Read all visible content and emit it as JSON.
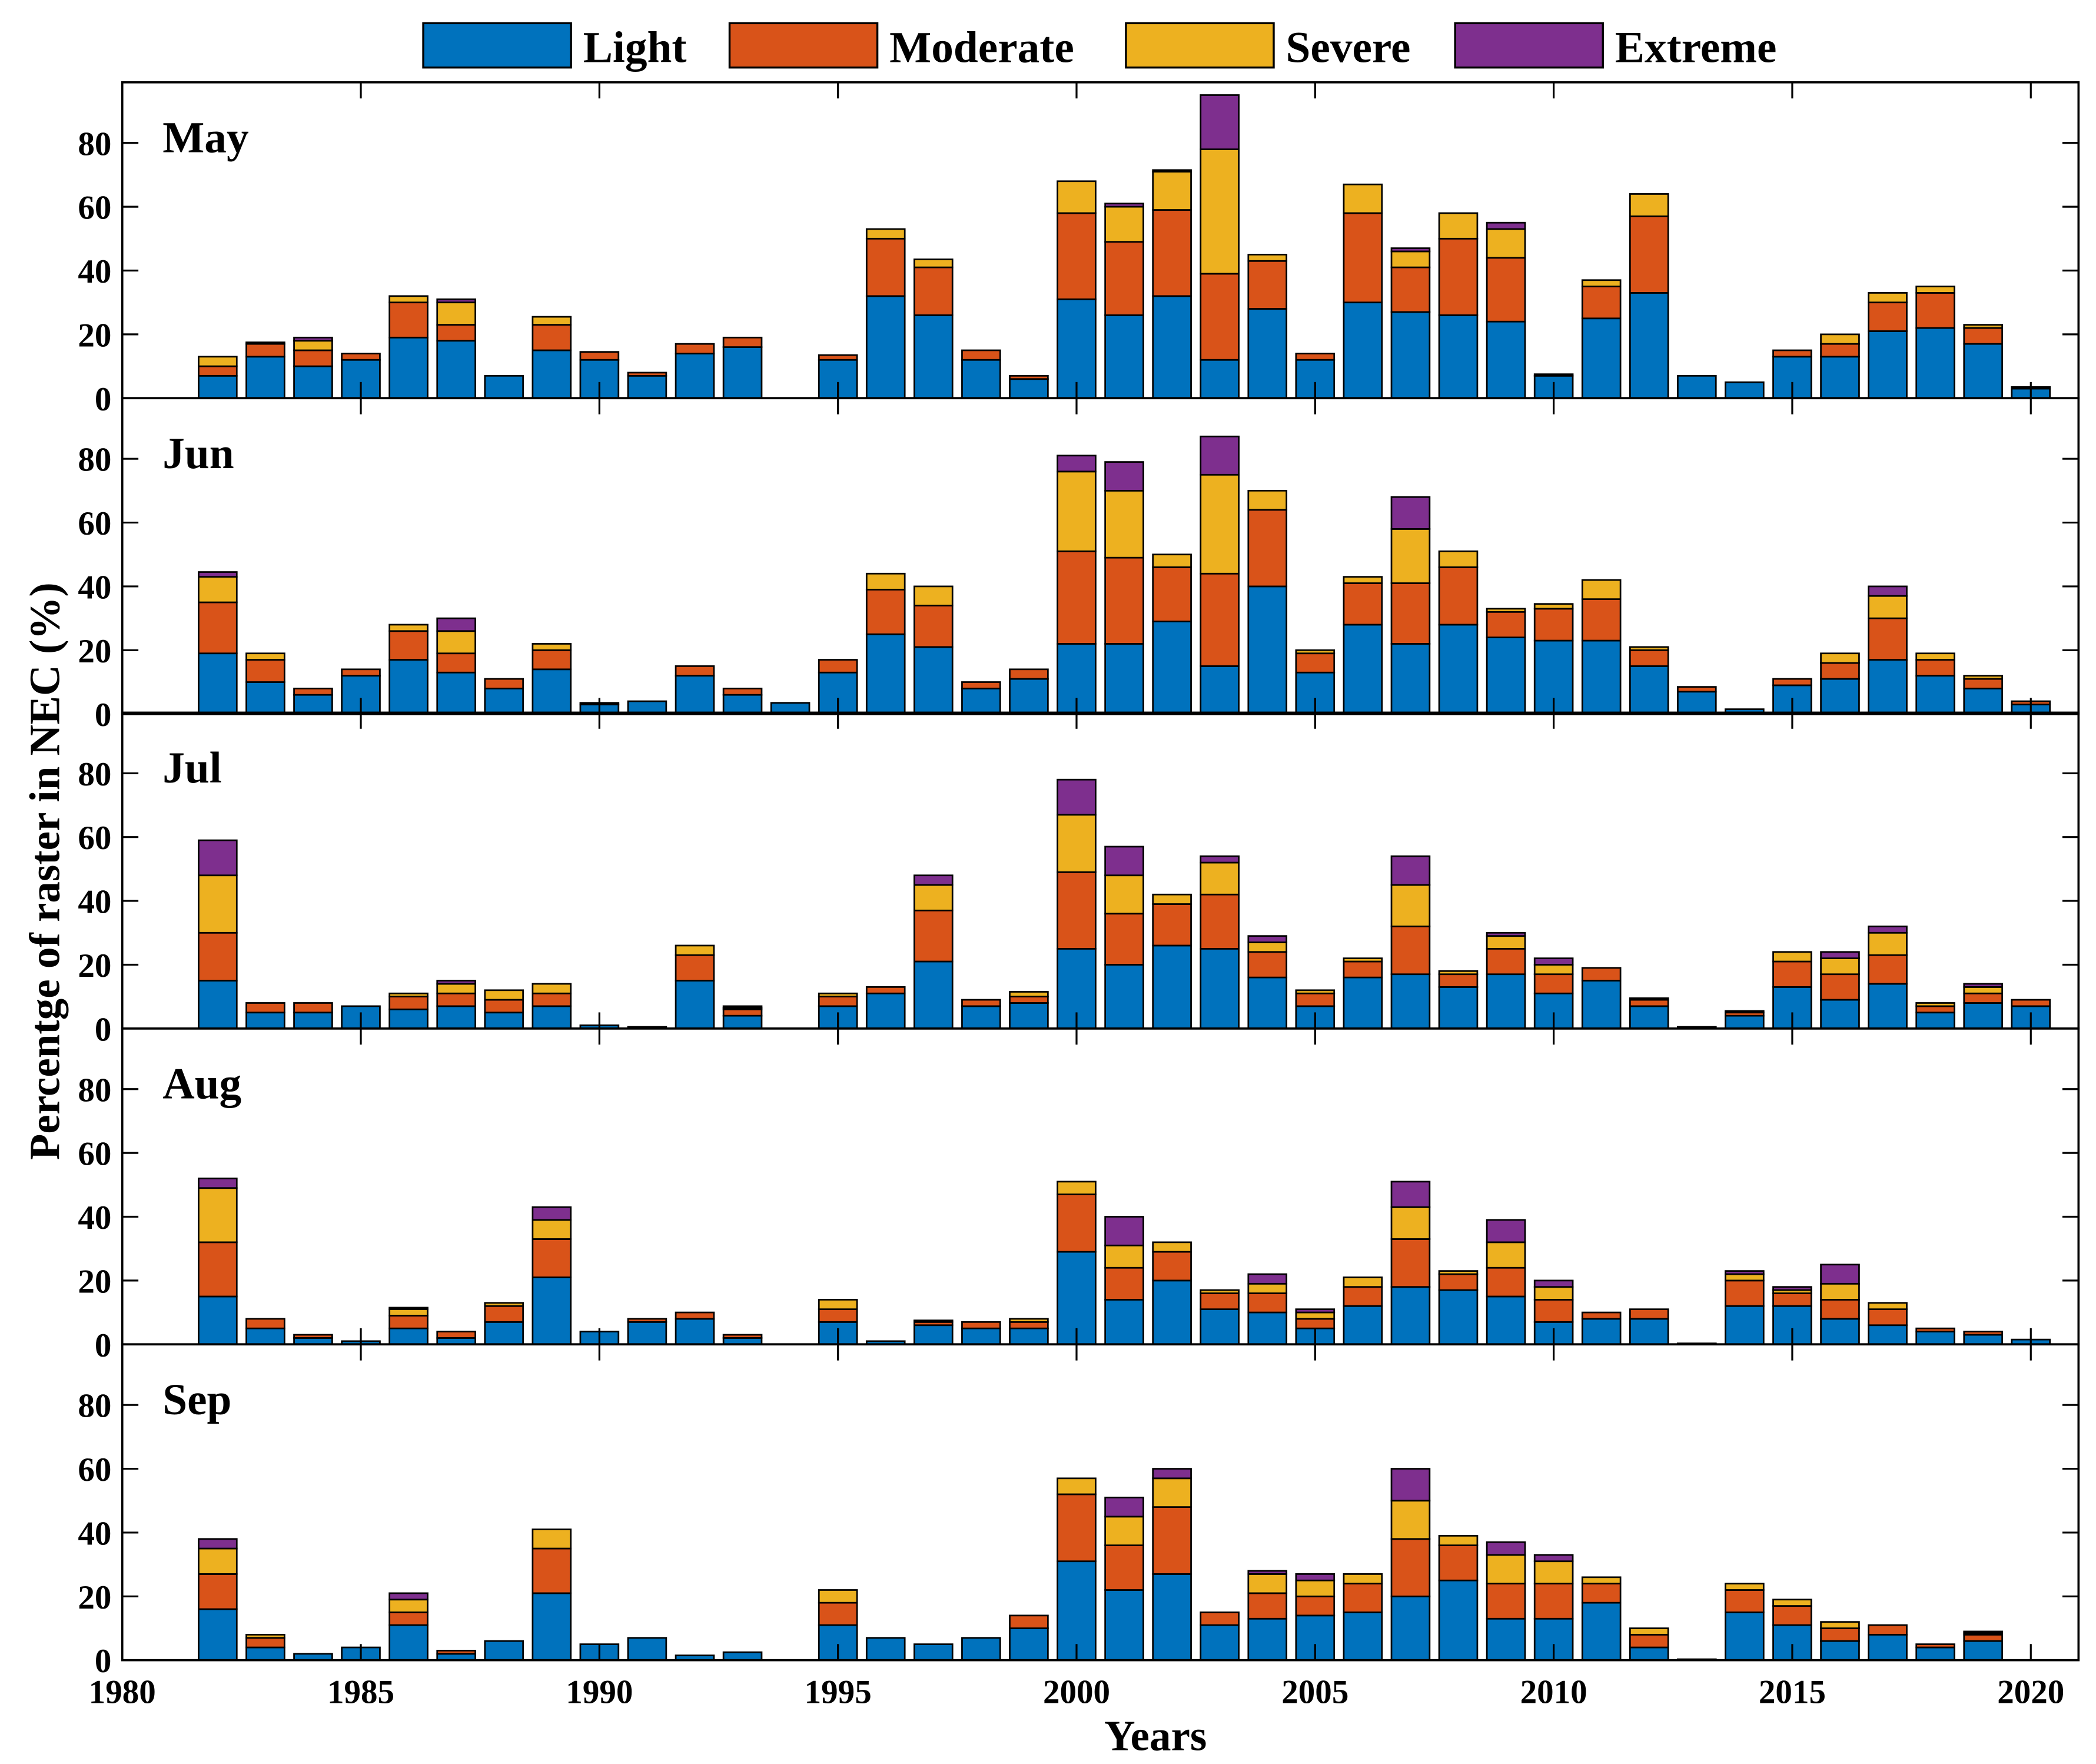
{
  "chart_data": {
    "type": "bar",
    "stacked": true,
    "xlabel": "Years",
    "ylabel": "Percentge of raster in NEC (%)",
    "xlim": [
      1980,
      2021
    ],
    "ylim": [
      0,
      99
    ],
    "xticks": [
      1980,
      1985,
      1990,
      1995,
      2000,
      2005,
      2010,
      2015,
      2020
    ],
    "yticks": [
      0,
      20,
      40,
      60,
      80
    ],
    "legend": {
      "placement": "top-center",
      "entries": [
        "Light",
        "Moderate",
        "Severe",
        "Extreme"
      ]
    },
    "colors": {
      "Light": "#0072BD",
      "Moderate": "#D95319",
      "Severe": "#EDB120",
      "Extreme": "#7E2F8E"
    },
    "x": [
      1982,
      1983,
      1984,
      1985,
      1986,
      1987,
      1988,
      1989,
      1990,
      1991,
      1992,
      1993,
      1994,
      1995,
      1996,
      1997,
      1998,
      1999,
      2000,
      2001,
      2002,
      2003,
      2004,
      2005,
      2006,
      2007,
      2008,
      2009,
      2010,
      2011,
      2012,
      2013,
      2014,
      2015,
      2016,
      2017,
      2018,
      2019,
      2020
    ],
    "panels": [
      {
        "month": "May",
        "series": [
          {
            "name": "Light",
            "values": [
              7,
              13,
              10,
              12,
              19,
              18,
              7,
              15,
              12,
              7,
              14,
              16,
              0,
              12,
              32,
              26,
              12,
              6,
              31,
              26,
              32,
              12,
              28,
              12,
              30,
              27,
              26,
              24,
              7,
              25,
              33,
              7,
              5,
              13,
              13,
              21,
              22,
              17,
              3
            ]
          },
          {
            "name": "Moderate",
            "values": [
              3,
              4,
              5,
              2,
              11,
              5,
              0,
              8,
              2.5,
              1,
              3,
              3,
              0,
              1.5,
              18,
              15,
              3,
              1,
              27,
              23,
              27,
              27,
              15,
              2,
              28,
              14,
              24,
              20,
              0.5,
              10,
              24,
              0,
              0,
              2,
              4,
              9,
              11,
              5,
              0.5
            ]
          },
          {
            "name": "Severe",
            "values": [
              3,
              0.5,
              3,
              0,
              2,
              7,
              0,
              2.5,
              0,
              0,
              0,
              0,
              0,
              0,
              3,
              2.5,
              0,
              0,
              10,
              11,
              12,
              39,
              2,
              0,
              9,
              5,
              8,
              9,
              0,
              2,
              7,
              0,
              0,
              0,
              3,
              3,
              2,
              1,
              0
            ]
          },
          {
            "name": "Extreme",
            "values": [
              0,
              0,
              1,
              0,
              0,
              1,
              0,
              0,
              0,
              0,
              0,
              0,
              0,
              0,
              0,
              0,
              0,
              0,
              0,
              1,
              0.5,
              17,
              0,
              0,
              0,
              1,
              0,
              2,
              0,
              0,
              0,
              0,
              0,
              0,
              0,
              0,
              0,
              0,
              0
            ]
          }
        ]
      },
      {
        "month": "Jun",
        "series": [
          {
            "name": "Light",
            "values": [
              19,
              10,
              6,
              12,
              17,
              13,
              8,
              14,
              3,
              4,
              12,
              6,
              3.5,
              13,
              25,
              21,
              8,
              11,
              22,
              22,
              29,
              15,
              40,
              13,
              28,
              22,
              28,
              24,
              23,
              23,
              15,
              7,
              1.5,
              9,
              11,
              17,
              12,
              8,
              3
            ]
          },
          {
            "name": "Moderate",
            "values": [
              16,
              7,
              2,
              2,
              9,
              6,
              3,
              6,
              0.5,
              0,
              3,
              2,
              0,
              4,
              14,
              13,
              2,
              3,
              29,
              27,
              17,
              29,
              24,
              6,
              13,
              19,
              18,
              8,
              10,
              13,
              5,
              1.5,
              0,
              2,
              5,
              13,
              5,
              3,
              1
            ]
          },
          {
            "name": "Severe",
            "values": [
              8,
              2,
              0,
              0,
              2,
              7,
              0,
              2,
              0,
              0,
              0,
              0,
              0,
              0,
              5,
              6,
              0,
              0,
              25,
              21,
              4,
              31,
              6,
              1,
              2,
              17,
              5,
              1,
              1.5,
              6,
              1,
              0,
              0,
              0,
              3,
              7,
              2,
              1,
              0
            ]
          },
          {
            "name": "Extreme",
            "values": [
              1.5,
              0,
              0,
              0,
              0,
              4,
              0,
              0,
              0,
              0,
              0,
              0,
              0,
              0,
              0,
              0,
              0,
              0,
              5,
              9,
              0,
              12,
              0,
              0,
              0,
              10,
              0,
              0,
              0,
              0,
              0,
              0,
              0,
              0,
              0,
              3,
              0,
              0,
              0
            ]
          }
        ]
      },
      {
        "month": "Jul",
        "series": [
          {
            "name": "Light",
            "values": [
              15,
              5,
              5,
              7,
              6,
              7,
              5,
              7,
              1,
              0.5,
              15,
              4,
              0,
              7,
              11,
              21,
              7,
              8,
              25,
              20,
              26,
              25,
              16,
              7,
              16,
              17,
              13,
              17,
              11,
              15,
              7,
              0.5,
              4,
              13,
              9,
              14,
              5,
              8,
              7
            ]
          },
          {
            "name": "Moderate",
            "values": [
              15,
              3,
              3,
              0,
              4,
              4,
              4,
              4,
              0,
              0,
              8,
              2,
              0,
              3,
              2,
              16,
              2,
              2,
              24,
              16,
              13,
              17,
              8,
              4,
              5,
              15,
              4,
              8,
              6,
              4,
              2,
              0,
              1,
              8,
              8,
              9,
              2,
              3,
              2
            ]
          },
          {
            "name": "Severe",
            "values": [
              18,
              0,
              0,
              0,
              1,
              3,
              3,
              3,
              0,
              0,
              3,
              0.5,
              0,
              1,
              0,
              8,
              0,
              1.5,
              18,
              12,
              3,
              10,
              3,
              1,
              1,
              13,
              1,
              4,
              3,
              0,
              0.5,
              0,
              0,
              3,
              5,
              7,
              1,
              2,
              0
            ]
          },
          {
            "name": "Extreme",
            "values": [
              11,
              0,
              0,
              0,
              0,
              1,
              0,
              0,
              0,
              0,
              0,
              0.5,
              0,
              0,
              0,
              3,
              0,
              0,
              11,
              9,
              0,
              2,
              2,
              0,
              0,
              9,
              0,
              1,
              2,
              0,
              0,
              0,
              0.5,
              0,
              2,
              2,
              0,
              1,
              0
            ]
          }
        ]
      },
      {
        "month": "Aug",
        "series": [
          {
            "name": "Light",
            "values": [
              15,
              5,
              2,
              1,
              5,
              2,
              7,
              21,
              4,
              7,
              8,
              2,
              0,
              7,
              1,
              6,
              5,
              5,
              29,
              14,
              20,
              11,
              10,
              5,
              12,
              18,
              17,
              15,
              7,
              8,
              8,
              0.3,
              12,
              12,
              8,
              6,
              4,
              3,
              1.5
            ]
          },
          {
            "name": "Moderate",
            "values": [
              17,
              3,
              1,
              0,
              4,
              2,
              5,
              12,
              0,
              1,
              2,
              1,
              0,
              4,
              0,
              1,
              2,
              2,
              18,
              10,
              9,
              5,
              6,
              3,
              6,
              15,
              5,
              9,
              7,
              2,
              3,
              0,
              8,
              4,
              6,
              5,
              1,
              1,
              0
            ]
          },
          {
            "name": "Severe",
            "values": [
              17,
              0,
              0,
              0,
              2,
              0,
              1,
              6,
              0,
              0,
              0,
              0,
              0,
              3,
              0,
              0.5,
              0,
              1,
              4,
              7,
              3,
              1,
              3,
              2,
              3,
              10,
              1,
              8,
              4,
              0,
              0,
              0,
              2,
              1,
              5,
              2,
              0,
              0,
              0
            ]
          },
          {
            "name": "Extreme",
            "values": [
              3,
              0,
              0,
              0,
              0.5,
              0,
              0,
              4,
              0,
              0,
              0,
              0,
              0,
              0,
              0,
              0,
              0,
              0,
              0,
              9,
              0,
              0,
              3,
              1,
              0,
              8,
              0,
              7,
              2,
              0,
              0,
              0,
              1,
              1,
              6,
              0,
              0,
              0,
              0
            ]
          }
        ]
      },
      {
        "month": "Sep",
        "series": [
          {
            "name": "Light",
            "values": [
              16,
              4,
              2,
              4,
              11,
              2,
              6,
              21,
              5,
              7,
              1.5,
              2.5,
              0,
              11,
              7,
              5,
              7,
              10,
              31,
              22,
              27,
              11,
              13,
              14,
              15,
              20,
              25,
              13,
              13,
              18,
              4,
              0.3,
              15,
              11,
              6,
              8,
              4,
              6,
              0
            ]
          },
          {
            "name": "Moderate",
            "values": [
              11,
              3,
              0,
              0,
              4,
              1,
              0,
              14,
              0,
              0,
              0,
              0,
              0,
              7,
              0,
              0,
              0,
              4,
              21,
              14,
              21,
              4,
              8,
              6,
              9,
              18,
              11,
              11,
              11,
              6,
              4,
              0,
              7,
              6,
              4,
              3,
              1,
              2,
              0
            ]
          },
          {
            "name": "Severe",
            "values": [
              8,
              1,
              0,
              0,
              4,
              0,
              0,
              6,
              0,
              0,
              0,
              0,
              0,
              4,
              0,
              0,
              0,
              0,
              5,
              9,
              9,
              0,
              6,
              5,
              3,
              12,
              3,
              9,
              7,
              2,
              2,
              0,
              2,
              2,
              2,
              0,
              0,
              0.5,
              0
            ]
          },
          {
            "name": "Extreme",
            "values": [
              3,
              0,
              0,
              0,
              2,
              0,
              0,
              0,
              0,
              0,
              0,
              0,
              0,
              0,
              0,
              0,
              0,
              0,
              0,
              6,
              3,
              0,
              1,
              2,
              0,
              10,
              0,
              4,
              2,
              0,
              0,
              0,
              0,
              0,
              0,
              0,
              0,
              0.5,
              0
            ]
          }
        ]
      }
    ]
  }
}
